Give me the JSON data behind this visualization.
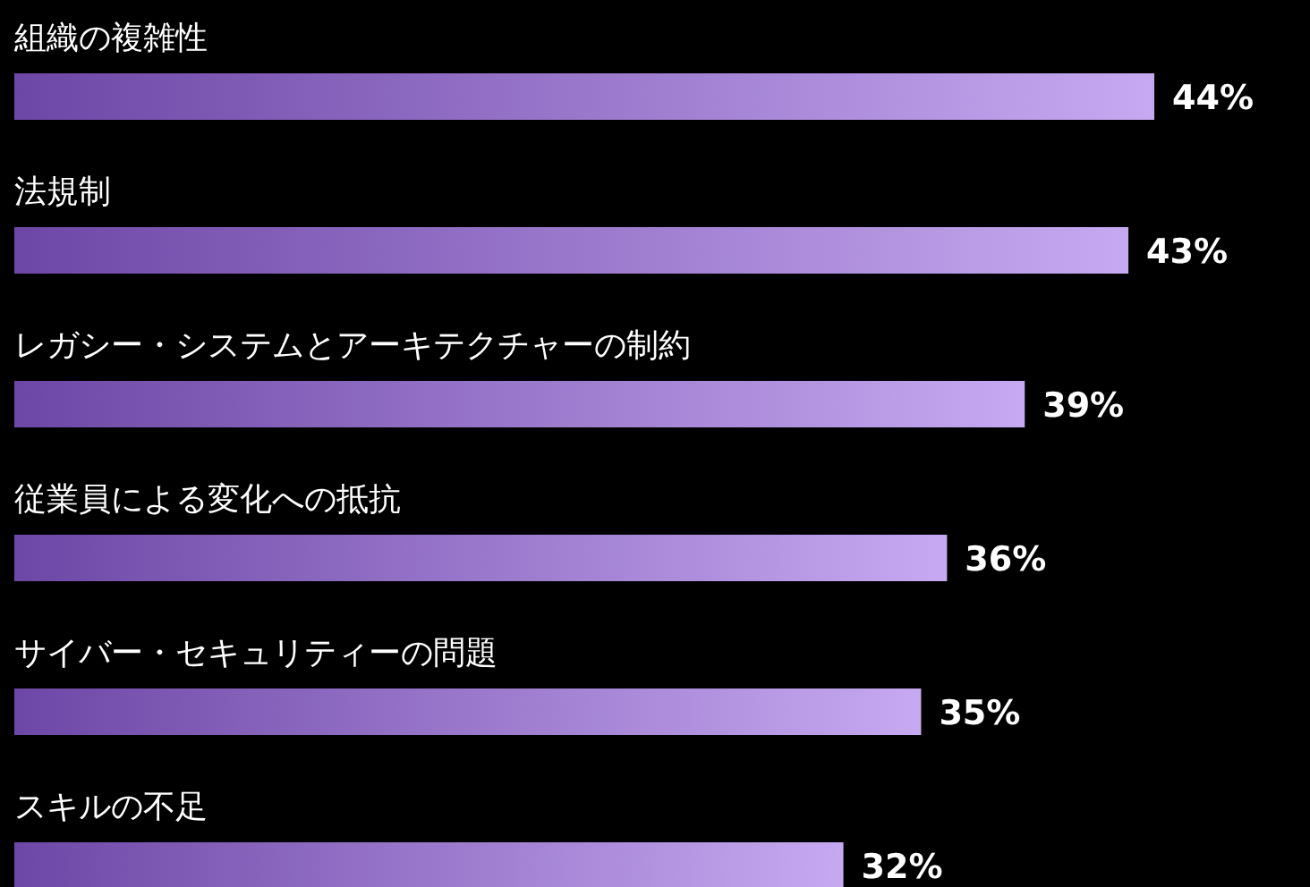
{
  "chart_data": {
    "type": "bar",
    "orientation": "horizontal",
    "categories": [
      "組織の複雑性",
      "法規制",
      "レガシー・システムとアーキテクチャーの制約",
      "従業員による変化への抵抗",
      "サイバー・セキュリティーの問題",
      "スキルの不足"
    ],
    "values": [
      44,
      43,
      39,
      36,
      35,
      32
    ],
    "value_labels": [
      "44%",
      "43%",
      "39%",
      "36%",
      "35%",
      "32%"
    ],
    "color": "#9763e6"
  }
}
